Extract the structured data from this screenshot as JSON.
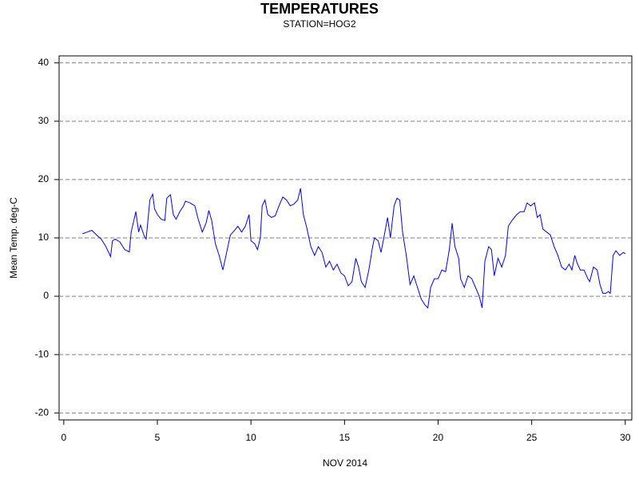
{
  "chart_data": {
    "type": "line",
    "title": "TEMPERATURES",
    "subtitle": "STATION=HOG2",
    "x_label": "NOV 2014",
    "y_label": "Mean Temp. deg-C",
    "x": [
      1.0,
      1.25,
      1.5,
      1.75,
      2.0,
      2.25,
      2.5,
      2.6,
      2.75,
      3.0,
      3.25,
      3.5,
      3.6,
      3.85,
      4.0,
      4.1,
      4.3,
      4.4,
      4.6,
      4.75,
      4.85,
      5.0,
      5.2,
      5.4,
      5.5,
      5.7,
      5.85,
      6.0,
      6.2,
      6.4,
      6.5,
      6.75,
      7.0,
      7.2,
      7.4,
      7.6,
      7.75,
      7.9,
      8.1,
      8.3,
      8.5,
      8.7,
      8.9,
      9.1,
      9.3,
      9.5,
      9.7,
      9.9,
      10.0,
      10.2,
      10.35,
      10.5,
      10.6,
      10.75,
      10.9,
      11.1,
      11.3,
      11.5,
      11.7,
      11.9,
      12.1,
      12.3,
      12.5,
      12.65,
      12.8,
      13.0,
      13.2,
      13.4,
      13.6,
      13.8,
      14.0,
      14.2,
      14.4,
      14.6,
      14.8,
      15.0,
      15.2,
      15.4,
      15.6,
      15.75,
      15.9,
      16.1,
      16.3,
      16.5,
      16.6,
      16.8,
      16.95,
      17.1,
      17.3,
      17.45,
      17.65,
      17.8,
      17.95,
      18.1,
      18.3,
      18.5,
      18.7,
      18.9,
      19.1,
      19.3,
      19.45,
      19.6,
      19.8,
      20.0,
      20.2,
      20.4,
      20.6,
      20.75,
      20.9,
      21.1,
      21.2,
      21.4,
      21.6,
      21.8,
      22.0,
      22.2,
      22.35,
      22.5,
      22.7,
      22.85,
      23.0,
      23.2,
      23.4,
      23.6,
      23.75,
      23.95,
      24.2,
      24.4,
      24.6,
      24.75,
      24.95,
      25.15,
      25.3,
      25.45,
      25.6,
      25.8,
      26.0,
      26.2,
      26.4,
      26.6,
      26.8,
      27.0,
      27.15,
      27.3,
      27.45,
      27.6,
      27.8,
      28.0,
      28.1,
      28.3,
      28.5,
      28.65,
      28.8,
      28.95,
      29.1,
      29.2,
      29.35,
      29.5,
      29.7,
      29.9,
      30.0
    ],
    "series": [
      {
        "color": "#0000ff",
        "values": [
          10.7,
          11.0,
          11.3,
          10.5,
          9.8,
          8.5,
          6.8,
          9.5,
          9.8,
          9.3,
          8.0,
          7.6,
          11.0,
          14.5,
          11.0,
          12.2,
          10.3,
          9.8,
          16.5,
          17.5,
          15.0,
          14.0,
          13.2,
          13.0,
          16.8,
          17.4,
          14.0,
          13.2,
          14.5,
          15.5,
          16.3,
          16.0,
          15.5,
          13.0,
          11.0,
          12.5,
          14.7,
          13.0,
          9.0,
          7.0,
          4.5,
          7.5,
          10.5,
          11.2,
          12.0,
          11.0,
          12.0,
          14.0,
          9.5,
          9.0,
          8.0,
          10.0,
          15.5,
          16.5,
          14.0,
          13.5,
          13.8,
          15.5,
          17.0,
          16.5,
          15.5,
          15.8,
          16.5,
          18.5,
          14.0,
          11.5,
          8.5,
          7.0,
          8.5,
          7.5,
          5.0,
          6.0,
          4.5,
          5.5,
          4.0,
          3.5,
          1.8,
          2.5,
          6.5,
          5.0,
          2.5,
          1.5,
          4.5,
          8.5,
          10.0,
          9.5,
          7.5,
          10.0,
          13.5,
          10.0,
          15.5,
          16.8,
          16.5,
          11.0,
          7.0,
          2.0,
          3.5,
          1.5,
          -0.5,
          -1.5,
          -2.0,
          1.5,
          3.0,
          3.0,
          4.5,
          4.2,
          8.0,
          12.5,
          8.5,
          6.5,
          3.0,
          1.5,
          3.5,
          3.0,
          1.5,
          0.0,
          -2.0,
          6.0,
          8.5,
          8.0,
          3.5,
          6.5,
          5.0,
          7.0,
          12.0,
          13.0,
          14.0,
          14.5,
          14.5,
          16.0,
          15.5,
          16.0,
          13.5,
          14.0,
          11.5,
          11.0,
          10.5,
          8.5,
          7.0,
          5.0,
          4.5,
          5.5,
          4.5,
          7.0,
          5.5,
          4.5,
          4.5,
          3.0,
          2.5,
          5.0,
          4.5,
          2.0,
          0.5,
          0.5,
          0.8,
          0.5,
          7.0,
          7.8,
          7.0,
          7.5,
          7.3
        ]
      }
    ],
    "xlim": [
      -0.25,
      30.35
    ],
    "xticks": [
      0,
      5,
      10,
      15,
      20,
      25,
      30
    ],
    "ylim": [
      -21.2,
      41.2
    ],
    "yticks": [
      -20,
      -10,
      0,
      10,
      20,
      30,
      40
    ],
    "grid": true
  }
}
